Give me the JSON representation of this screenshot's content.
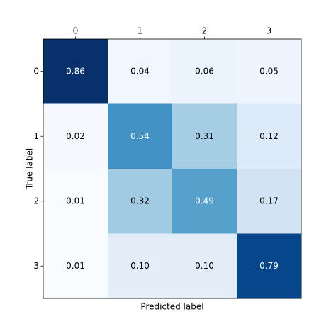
{
  "chart_data": {
    "type": "heatmap",
    "x_label": "Predicted label",
    "y_label": "True label",
    "x_categories": [
      "0",
      "1",
      "2",
      "3"
    ],
    "y_categories": [
      "0",
      "1",
      "2",
      "3"
    ],
    "values": [
      [
        0.86,
        0.04,
        0.06,
        0.05
      ],
      [
        0.02,
        0.54,
        0.31,
        0.12
      ],
      [
        0.01,
        0.32,
        0.49,
        0.17
      ],
      [
        0.01,
        0.1,
        0.1,
        0.79
      ]
    ],
    "value_labels": [
      [
        "0.86",
        "0.04",
        "0.06",
        "0.05"
      ],
      [
        "0.02",
        "0.54",
        "0.31",
        "0.12"
      ],
      [
        "0.01",
        "0.32",
        "0.49",
        "0.17"
      ],
      [
        "0.01",
        "0.10",
        "0.10",
        "0.79"
      ]
    ],
    "colormap": "Blues",
    "x_axis_position": "top"
  }
}
